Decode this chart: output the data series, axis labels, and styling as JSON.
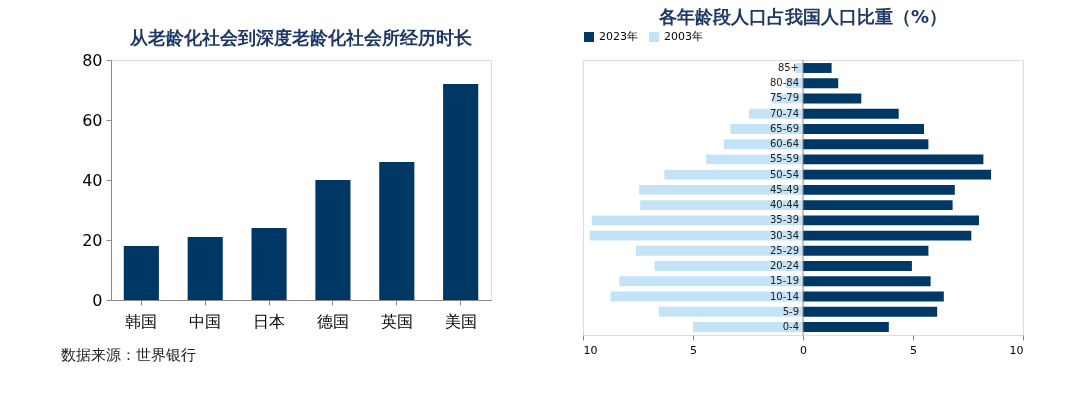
{
  "chart_data": [
    {
      "type": "bar",
      "title": "从老龄化社会到深度老龄化社会所经历时长",
      "categories": [
        "韩国",
        "中国",
        "日本",
        "德国",
        "英国",
        "美国"
      ],
      "values": [
        18,
        21,
        24,
        40,
        46,
        72
      ],
      "color": "#003865",
      "ylim": [
        0,
        80
      ],
      "yticks": [
        0,
        20,
        40,
        60,
        80
      ],
      "grid": false,
      "legend": false,
      "annotations": [
        "数据来源：世界银行"
      ]
    },
    {
      "type": "bar",
      "orientation": "horizontal",
      "title": "各年龄段人口占我国人口比重（%）",
      "categories": [
        "85+",
        "80-84",
        "75-79",
        "70-74",
        "65-69",
        "60-64",
        "55-59",
        "50-54",
        "45-49",
        "40-44",
        "35-39",
        "30-34",
        "25-29",
        "20-24",
        "15-19",
        "10-14",
        "5-9",
        "0-4"
      ],
      "series": [
        {
          "name": "2023年",
          "color": "#003865",
          "values": [
            1.3,
            1.6,
            2.65,
            4.35,
            5.5,
            5.7,
            8.2,
            8.55,
            6.9,
            6.8,
            8.0,
            7.65,
            5.7,
            4.95,
            5.8,
            6.4,
            6.1,
            3.9
          ]
        },
        {
          "name": "2003年",
          "color": "#c5e3f7",
          "values": [
            -0.35,
            -0.8,
            -1.4,
            -2.45,
            -3.3,
            -3.6,
            -4.4,
            -6.3,
            -7.45,
            -7.4,
            -9.6,
            -9.7,
            -7.6,
            -6.75,
            -8.35,
            -8.75,
            -6.55,
            -5.0
          ]
        }
      ],
      "xlim": [
        -10,
        10
      ],
      "xticks": [
        {
          "value": -10,
          "label": "10"
        },
        {
          "value": -5,
          "label": "5"
        },
        0,
        5,
        10
      ],
      "grid": false,
      "legend": "top",
      "stacked": true
    }
  ]
}
